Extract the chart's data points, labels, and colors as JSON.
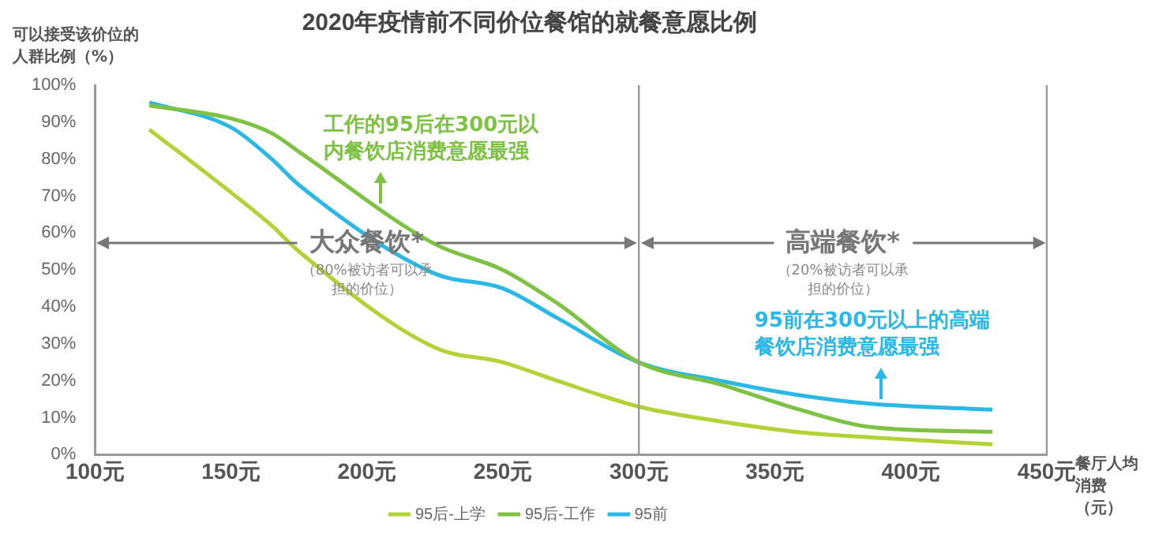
{
  "chart_data": {
    "type": "line",
    "title": "2020年疫情前不同价位餐馆的就餐意愿比例",
    "xlabel": "餐厅人均消费（元）",
    "ylabel": "可以接受该价位的人群比例（%）",
    "x": [
      120,
      150,
      165,
      175,
      225,
      250,
      270,
      300,
      330,
      360,
      385,
      430
    ],
    "series": [
      {
        "name": "95后-上学",
        "color": "#b2d235",
        "values": [
          88,
          71,
          62,
          55,
          29,
          25,
          20,
          13,
          9,
          6,
          4.7,
          2.8
        ]
      },
      {
        "name": "95后-工作",
        "color": "#7dc243",
        "values": [
          94.5,
          91,
          87,
          82,
          57,
          50,
          41,
          25,
          19,
          12,
          7.5,
          6.2
        ]
      },
      {
        "name": "95前",
        "color": "#2bb8e6",
        "values": [
          95.3,
          88.6,
          80,
          73,
          49,
          45,
          37,
          25,
          20,
          16,
          13.8,
          12.2
        ]
      }
    ],
    "xlim": [
      100,
      450
    ],
    "xticks": [
      {
        "value": 100,
        "label": "100元"
      },
      {
        "value": 150,
        "label": "150元"
      },
      {
        "value": 200,
        "label": "200元"
      },
      {
        "value": 250,
        "label": "250元"
      },
      {
        "value": 300,
        "label": "300元"
      },
      {
        "value": 350,
        "label": "350元"
      },
      {
        "value": 400,
        "label": "400元"
      },
      {
        "value": 450,
        "label": "450元"
      }
    ],
    "ylim": [
      0,
      100
    ],
    "yticks": [
      {
        "value": 0,
        "label": "0%"
      },
      {
        "value": 10,
        "label": "10%"
      },
      {
        "value": 20,
        "label": "20%"
      },
      {
        "value": 30,
        "label": "30%"
      },
      {
        "value": 40,
        "label": "40%"
      },
      {
        "value": 50,
        "label": "50%"
      },
      {
        "value": 60,
        "label": "60%"
      },
      {
        "value": 70,
        "label": "70%"
      },
      {
        "value": 80,
        "label": "80%"
      },
      {
        "value": 90,
        "label": "90%"
      },
      {
        "value": 100,
        "label": "100%"
      }
    ],
    "ref_lines": [
      {
        "axis": "x",
        "value": 300
      }
    ],
    "annotations": [
      {
        "text": "大众餐饮*",
        "x": 200,
        "y": 57.5
      },
      "（80%被访者可以承担的价位）",
      {
        "text": "高端餐饮*",
        "x": 300,
        "y": 57.5
      },
      "（20%被访者可以承担的价位）",
      {
        "text": "工作的95后在300元以内餐饮店消费意愿最强",
        "x": 205,
        "y": 68
      },
      {
        "text": "95前在300元以上的高端餐饮店消费意愿最强",
        "x": 389,
        "y": 15
      }
    ],
    "grid": false,
    "legend": "bottom",
    "marker": "none",
    "line_style": "solid"
  }
}
